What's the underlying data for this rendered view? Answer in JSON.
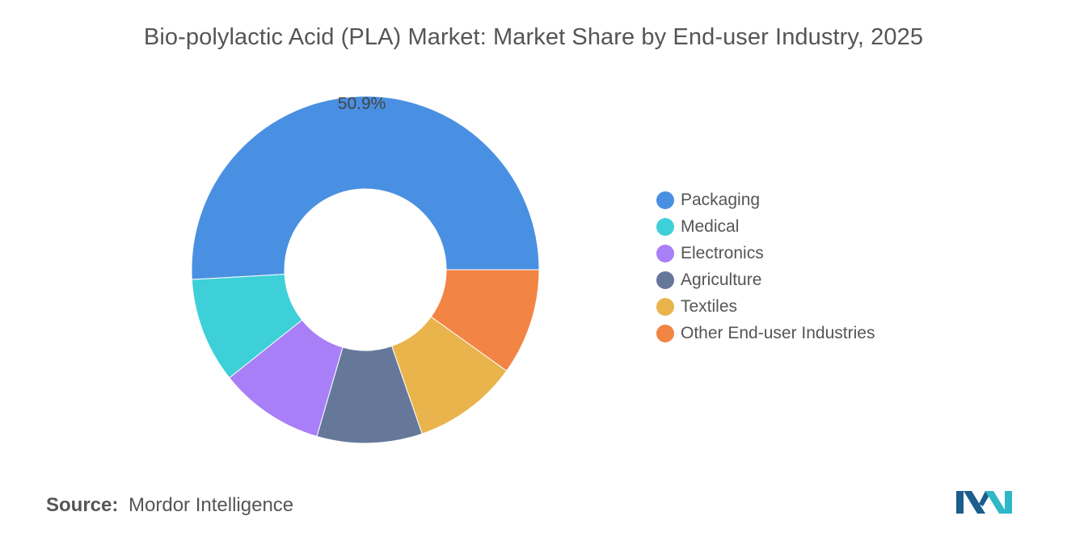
{
  "title": "Bio-polylactic Acid (PLA) Market: Market Share by End-user Industry, 2025",
  "source": {
    "prefix": "Source:",
    "text": "Mordor Intelligence"
  },
  "chart_data": {
    "type": "pie",
    "variant": "donut",
    "categories": [
      "Packaging",
      "Medical",
      "Electronics",
      "Agriculture",
      "Textiles",
      "Other End-user Industries"
    ],
    "values": [
      50.9,
      9.8,
      9.8,
      9.8,
      9.8,
      9.9
    ],
    "colors": [
      "#4a90e2",
      "#3ed0d8",
      "#a97ff7",
      "#66789a",
      "#e9b44c",
      "#f28444"
    ],
    "data_labels": [
      "50.9%",
      "",
      "",
      "",
      "",
      ""
    ],
    "legend_position": "right"
  },
  "logo": {
    "colors": [
      "#1b5e8c",
      "#2fb7c5"
    ]
  }
}
